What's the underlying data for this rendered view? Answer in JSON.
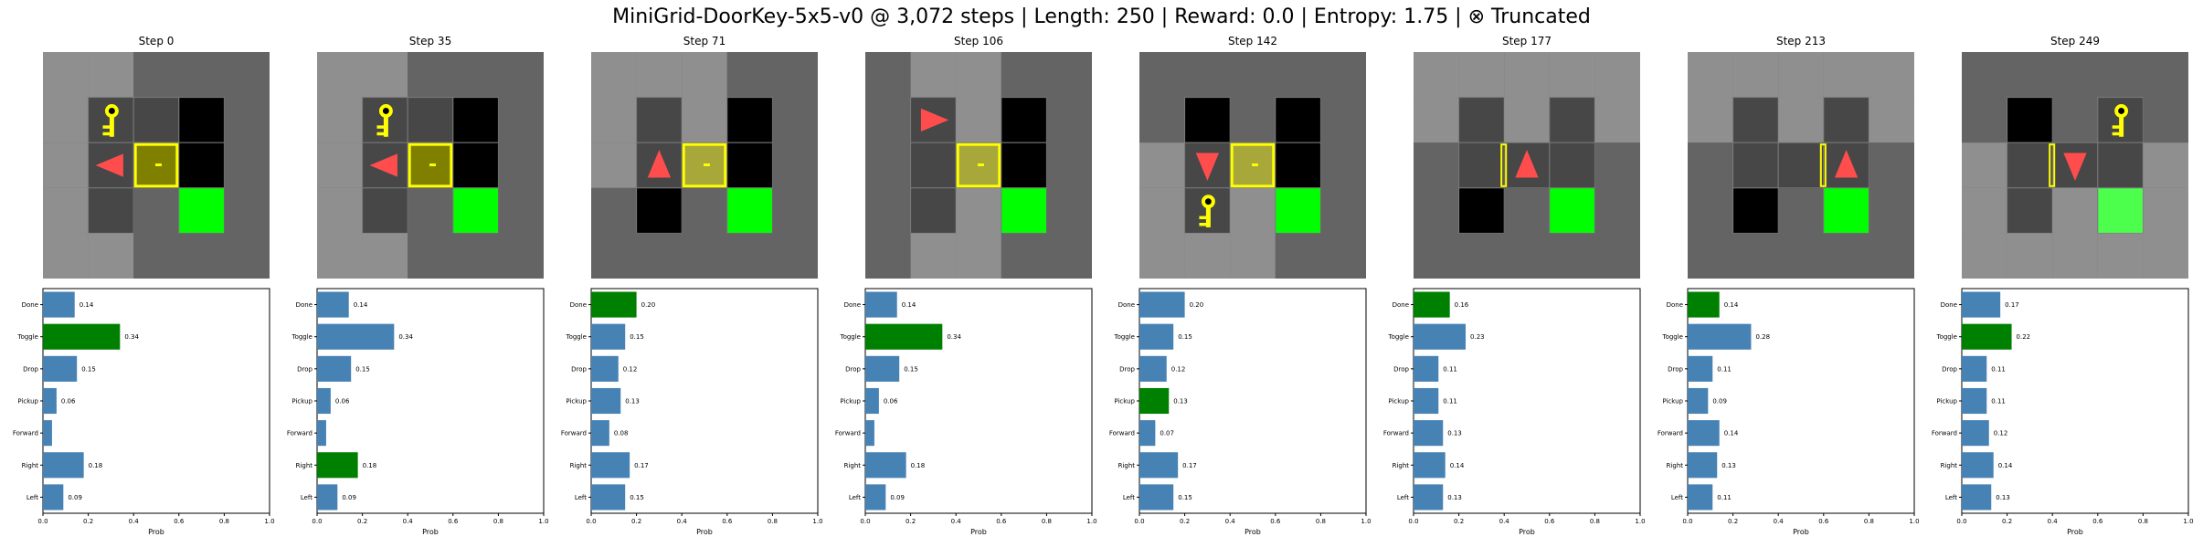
{
  "title": "MiniGrid-DoorKey-5x5-v0 @ 3,072 steps | Length: 250 | Reward: 0.0 | Entropy: 1.75 | ⊗ Truncated",
  "colors": {
    "bar_default": "#4682b4",
    "bar_selected": "#008000",
    "wall": "#646464",
    "floor_visible": "#8f8f8f",
    "cell_dark": "#474747",
    "black_cell": "#000000",
    "goal": "#00ff00",
    "goal_visible": "#4dff4d",
    "door_locked": "#7f7f00",
    "door_border": "#ffff00",
    "key": "#ffff00",
    "agent": "#ff4d4d"
  },
  "chart_data": {
    "type": "bar",
    "orientation": "horizontal",
    "categories": [
      "Done",
      "Toggle",
      "Drop",
      "Pickup",
      "Forward",
      "Right",
      "Left"
    ],
    "xlabel": "Prob",
    "xlim": [
      0,
      1
    ],
    "xticks": [
      "0.0",
      "0.2",
      "0.4",
      "0.6",
      "0.8",
      "1.0"
    ],
    "panels": [
      {
        "title": "Step 0",
        "values": [
          0.14,
          0.34,
          0.15,
          0.06,
          0.04,
          0.18,
          0.09
        ],
        "labels": [
          "0.14",
          "0.34",
          "0.15",
          "0.06",
          "",
          "0.18",
          "0.09"
        ],
        "selected": "Toggle"
      },
      {
        "title": "Step 35",
        "values": [
          0.14,
          0.34,
          0.15,
          0.06,
          0.04,
          0.18,
          0.09
        ],
        "labels": [
          "0.14",
          "0.34",
          "0.15",
          "0.06",
          "",
          "0.18",
          "0.09"
        ],
        "selected": "Right"
      },
      {
        "title": "Step 71",
        "values": [
          0.2,
          0.15,
          0.12,
          0.13,
          0.08,
          0.17,
          0.15
        ],
        "labels": [
          "0.20",
          "0.15",
          "0.12",
          "0.13",
          "0.08",
          "0.17",
          "0.15"
        ],
        "selected": "Done"
      },
      {
        "title": "Step 106",
        "values": [
          0.14,
          0.34,
          0.15,
          0.06,
          0.04,
          0.18,
          0.09
        ],
        "labels": [
          "0.14",
          "0.34",
          "0.15",
          "0.06",
          "",
          "0.18",
          "0.09"
        ],
        "selected": "Toggle"
      },
      {
        "title": "Step 142",
        "values": [
          0.2,
          0.15,
          0.12,
          0.13,
          0.07,
          0.17,
          0.15
        ],
        "labels": [
          "0.20",
          "0.15",
          "0.12",
          "0.13",
          "0.07",
          "0.17",
          "0.15"
        ],
        "selected": "Pickup"
      },
      {
        "title": "Step 177",
        "values": [
          0.16,
          0.23,
          0.11,
          0.11,
          0.13,
          0.14,
          0.13
        ],
        "labels": [
          "0.16",
          "0.23",
          "0.11",
          "0.11",
          "0.13",
          "0.14",
          "0.13"
        ],
        "selected": "Done"
      },
      {
        "title": "Step 213",
        "values": [
          0.14,
          0.28,
          0.11,
          0.09,
          0.14,
          0.13,
          0.11
        ],
        "labels": [
          "0.14",
          "0.28",
          "0.11",
          "0.09",
          "0.14",
          "0.13",
          "0.11"
        ],
        "selected": "Done"
      },
      {
        "title": "Step 249",
        "values": [
          0.17,
          0.22,
          0.11,
          0.11,
          0.12,
          0.14,
          0.13
        ],
        "labels": [
          "0.17",
          "0.22",
          "0.11",
          "0.11",
          "0.12",
          "0.14",
          "0.13"
        ],
        "selected": "Toggle"
      }
    ]
  },
  "grids": [
    {
      "cells": [
        [
          "W",
          "W",
          "W",
          "W",
          "W"
        ],
        [
          "W",
          "K",
          "D",
          "B",
          "W"
        ],
        [
          "W",
          "A",
          "L",
          "B",
          "W"
        ],
        [
          "W",
          "D",
          "W",
          "G",
          "W"
        ],
        [
          "W",
          "W",
          "W",
          "W",
          "W"
        ]
      ],
      "visible": [
        [
          1,
          1,
          0,
          0,
          0
        ],
        [
          1,
          1,
          0,
          0,
          0
        ],
        [
          1,
          1,
          0,
          0,
          0
        ],
        [
          1,
          1,
          0,
          0,
          0
        ],
        [
          1,
          1,
          0,
          0,
          0
        ]
      ],
      "agent_dir": "left"
    },
    {
      "cells": [
        [
          "W",
          "W",
          "W",
          "W",
          "W"
        ],
        [
          "W",
          "K",
          "D",
          "B",
          "W"
        ],
        [
          "W",
          "A",
          "L",
          "B",
          "W"
        ],
        [
          "W",
          "D",
          "W",
          "G",
          "W"
        ],
        [
          "W",
          "W",
          "W",
          "W",
          "W"
        ]
      ],
      "visible": [
        [
          1,
          1,
          0,
          0,
          0
        ],
        [
          1,
          1,
          0,
          0,
          0
        ],
        [
          1,
          1,
          0,
          0,
          0
        ],
        [
          1,
          1,
          0,
          0,
          0
        ],
        [
          1,
          1,
          0,
          0,
          0
        ]
      ],
      "agent_dir": "left"
    },
    {
      "cells": [
        [
          "W",
          "W",
          "W",
          "W",
          "W"
        ],
        [
          "W",
          "D",
          "W",
          "B",
          "W"
        ],
        [
          "W",
          "A",
          "L",
          "B",
          "W"
        ],
        [
          "W",
          "B",
          "W",
          "G",
          "W"
        ],
        [
          "W",
          "W",
          "W",
          "W",
          "W"
        ]
      ],
      "visible": [
        [
          1,
          1,
          1,
          0,
          0
        ],
        [
          1,
          1,
          1,
          0,
          0
        ],
        [
          1,
          1,
          1,
          0,
          0
        ],
        [
          0,
          0,
          0,
          0,
          0
        ],
        [
          0,
          0,
          0,
          0,
          0
        ]
      ],
      "agent_dir": "up"
    },
    {
      "cells": [
        [
          "W",
          "W",
          "W",
          "W",
          "W"
        ],
        [
          "W",
          "A",
          "W",
          "B",
          "W"
        ],
        [
          "W",
          "D",
          "L",
          "B",
          "W"
        ],
        [
          "W",
          "D",
          "W",
          "G",
          "W"
        ],
        [
          "W",
          "W",
          "W",
          "W",
          "W"
        ]
      ],
      "visible": [
        [
          0,
          1,
          1,
          0,
          0
        ],
        [
          0,
          1,
          1,
          0,
          0
        ],
        [
          0,
          1,
          1,
          0,
          0
        ],
        [
          0,
          1,
          1,
          0,
          0
        ],
        [
          0,
          1,
          1,
          0,
          0
        ]
      ],
      "agent_dir": "right"
    },
    {
      "cells": [
        [
          "W",
          "W",
          "W",
          "W",
          "W"
        ],
        [
          "W",
          "B",
          "W",
          "B",
          "W"
        ],
        [
          "W",
          "A",
          "L",
          "B",
          "W"
        ],
        [
          "W",
          "K",
          "W",
          "G",
          "W"
        ],
        [
          "W",
          "W",
          "W",
          "W",
          "W"
        ]
      ],
      "visible": [
        [
          0,
          0,
          0,
          0,
          0
        ],
        [
          0,
          0,
          0,
          0,
          0
        ],
        [
          1,
          1,
          1,
          0,
          0
        ],
        [
          1,
          1,
          1,
          0,
          0
        ],
        [
          1,
          1,
          1,
          0,
          0
        ]
      ],
      "agent_dir": "down"
    },
    {
      "cells": [
        [
          "W",
          "W",
          "W",
          "W",
          "W"
        ],
        [
          "W",
          "D",
          "W",
          "D",
          "W"
        ],
        [
          "W",
          "D",
          "A",
          "D",
          "W"
        ],
        [
          "W",
          "B",
          "W",
          "G",
          "W"
        ],
        [
          "W",
          "W",
          "W",
          "W",
          "W"
        ]
      ],
      "visible": [
        [
          1,
          1,
          1,
          1,
          1
        ],
        [
          1,
          1,
          1,
          1,
          1
        ],
        [
          0,
          0,
          0,
          0,
          0
        ],
        [
          0,
          0,
          0,
          0,
          0
        ],
        [
          0,
          0,
          0,
          0,
          0
        ]
      ],
      "agent_dir": "up",
      "door_open_at": [
        2,
        2
      ]
    },
    {
      "cells": [
        [
          "W",
          "W",
          "W",
          "W",
          "W"
        ],
        [
          "W",
          "D",
          "W",
          "D",
          "W"
        ],
        [
          "W",
          "D",
          "D",
          "A",
          "W"
        ],
        [
          "W",
          "B",
          "W",
          "G",
          "W"
        ],
        [
          "W",
          "W",
          "W",
          "W",
          "W"
        ]
      ],
      "visible": [
        [
          1,
          1,
          1,
          1,
          1
        ],
        [
          1,
          1,
          1,
          1,
          1
        ],
        [
          0,
          0,
          0,
          0,
          0
        ],
        [
          0,
          0,
          0,
          0,
          0
        ],
        [
          0,
          0,
          0,
          0,
          0
        ]
      ],
      "agent_dir": "up",
      "door_open_at": [
        2,
        3
      ]
    },
    {
      "cells": [
        [
          "W",
          "W",
          "W",
          "W",
          "W"
        ],
        [
          "W",
          "B",
          "W",
          "K",
          "W"
        ],
        [
          "W",
          "D",
          "A",
          "D",
          "W"
        ],
        [
          "W",
          "D",
          "W",
          "G",
          "W"
        ],
        [
          "W",
          "W",
          "W",
          "W",
          "W"
        ]
      ],
      "visible": [
        [
          0,
          0,
          0,
          0,
          0
        ],
        [
          0,
          0,
          0,
          0,
          0
        ],
        [
          1,
          1,
          1,
          1,
          1
        ],
        [
          1,
          1,
          1,
          1,
          1
        ],
        [
          1,
          1,
          1,
          1,
          1
        ]
      ],
      "agent_dir": "down",
      "door_open_at": [
        2,
        2
      ]
    }
  ]
}
